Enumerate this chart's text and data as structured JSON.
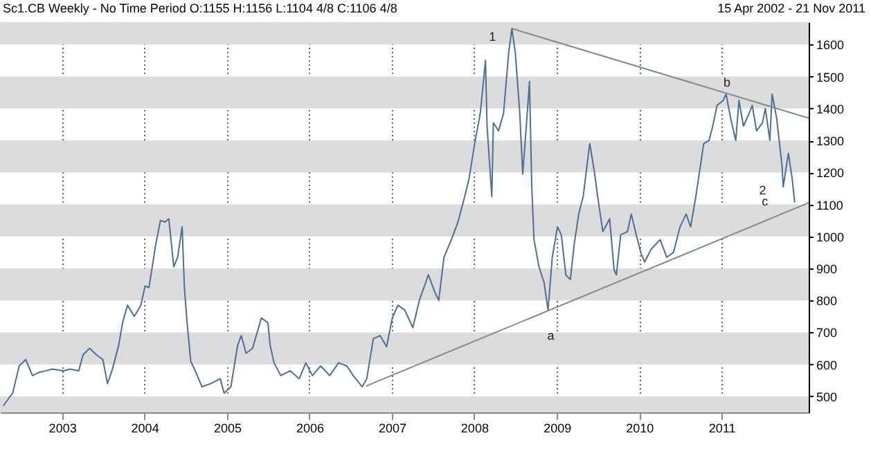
{
  "chart_data": {
    "type": "line",
    "title": "Sc1.CB Weekly -  No Time Period O:1155 H:1156 L:1104 4/8 C:1106 4/8",
    "subtitle": "15 Apr 2002  -  21 Nov 2011",
    "xlim": [
      "2002-04-01",
      "2012-01-22"
    ],
    "ylim": [
      450,
      1670
    ],
    "xticks": [
      "2003",
      "2004",
      "2005",
      "2006",
      "2007",
      "2008",
      "2009",
      "2010",
      "2011"
    ],
    "yticks": [
      500,
      600,
      700,
      800,
      900,
      1000,
      1100,
      1200,
      1300,
      1400,
      1500,
      1600
    ],
    "grid": "x",
    "marker": "none",
    "bands": [
      {
        "axis": "y",
        "from": 450,
        "to": 500,
        "color": "#dcdcdc"
      },
      {
        "axis": "y",
        "from": 600,
        "to": 700,
        "color": "#dcdcdc"
      },
      {
        "axis": "y",
        "from": 800,
        "to": 900,
        "color": "#dcdcdc"
      },
      {
        "axis": "y",
        "from": 1000,
        "to": 1100,
        "color": "#dcdcdc"
      },
      {
        "axis": "y",
        "from": 1200,
        "to": 1300,
        "color": "#dcdcdc"
      },
      {
        "axis": "y",
        "from": 1400,
        "to": 1500,
        "color": "#dcdcdc"
      },
      {
        "axis": "y",
        "from": 1600,
        "to": 1670,
        "color": "#dcdcdc"
      }
    ],
    "annotations": [
      "1",
      {
        "text": "a",
        "x": "2008-12-05",
        "y": 690
      },
      "b",
      "2",
      {
        "text": "c",
        "x": "2011-07-12",
        "y": 1110
      }
    ],
    "series": [
      {
        "type": "line",
        "color": "#4a6f9a",
        "x": [
          "2002-04-15",
          "2002-05-27",
          "2002-06-25",
          "2002-07-24",
          "2002-08-23",
          "2002-09-22",
          "2002-10-21",
          "2002-11-20",
          "2003-01-06",
          "2003-02-07",
          "2003-03-16",
          "2003-04-04",
          "2003-05-03",
          "2003-06-02",
          "2003-07-01",
          "2003-07-21",
          "2003-08-10",
          "2003-09-09",
          "2003-09-26",
          "2003-10-18",
          "2003-11-17",
          "2003-12-16",
          "2004-01-04",
          "2004-01-21",
          "2004-02-20",
          "2004-03-12",
          "2004-04-01",
          "2004-04-18",
          "2004-05-10",
          "2004-05-27",
          "2004-06-16",
          "2004-06-26",
          "2004-07-08",
          "2004-07-24",
          "2004-08-13",
          "2004-09-12",
          "2004-10-21",
          "2004-12-02",
          "2004-12-19",
          "2005-01-18",
          "2005-02-17",
          "2005-03-05",
          "2005-03-26",
          "2005-04-24",
          "2005-06-02",
          "2005-07-01",
          "2005-07-11",
          "2005-07-28",
          "2005-08-27",
          "2005-10-08",
          "2005-11-17",
          "2005-12-16",
          "2006-01-14",
          "2006-02-20",
          "2006-04-01",
          "2006-05-10",
          "2006-06-16",
          "2006-07-14",
          "2006-08-23",
          "2006-09-12",
          "2006-10-11",
          "2006-11-10",
          "2006-12-09",
          "2007-01-03",
          "2007-01-28",
          "2007-02-27",
          "2007-04-04",
          "2007-05-03",
          "2007-06-12",
          "2007-07-11",
          "2007-07-28",
          "2007-08-20",
          "2007-09-22",
          "2007-10-21",
          "2007-11-20",
          "2007-12-09",
          "2008-01-03",
          "2008-01-28",
          "2008-02-20",
          "2008-02-27",
          "2008-03-19",
          "2008-03-26",
          "2008-04-18",
          "2008-05-10",
          "2008-06-02",
          "2008-06-16",
          "2008-07-01",
          "2008-07-21",
          "2008-08-03",
          "2008-08-20",
          "2008-09-02",
          "2008-09-12",
          "2008-09-22",
          "2008-10-14",
          "2008-11-06",
          "2008-11-23",
          "2008-12-12",
          "2009-01-04",
          "2009-01-21",
          "2009-02-10",
          "2009-03-02",
          "2009-03-19",
          "2009-04-08",
          "2009-04-28",
          "2009-05-17",
          "2009-05-27",
          "2009-06-16",
          "2009-07-04",
          "2009-07-24",
          "2009-08-23",
          "2009-09-12",
          "2009-09-22",
          "2009-10-11",
          "2009-11-10",
          "2009-11-27",
          "2009-12-19",
          "2010-01-08",
          "2010-01-25",
          "2010-02-23",
          "2010-04-04",
          "2010-05-03",
          "2010-06-02",
          "2010-07-01",
          "2010-07-28",
          "2010-08-17",
          "2010-09-09",
          "2010-09-26",
          "2010-10-14",
          "2010-11-06",
          "2010-11-23",
          "2010-12-12",
          "2011-01-08",
          "2011-01-21",
          "2011-02-10",
          "2011-03-05",
          "2011-03-19",
          "2011-04-08",
          "2011-05-03",
          "2011-05-17",
          "2011-06-05",
          "2011-07-01",
          "2011-07-14",
          "2011-08-03",
          "2011-08-13",
          "2011-09-02",
          "2011-09-26",
          "2011-10-01",
          "2011-10-24",
          "2011-11-10",
          "2011-11-21"
        ],
        "values": [
          470,
          510,
          595,
          615,
          565,
          575,
          580,
          585,
          580,
          585,
          580,
          630,
          650,
          630,
          615,
          540,
          580,
          660,
          730,
          785,
          750,
          785,
          845,
          840,
          975,
          1050,
          1045,
          1055,
          905,
          935,
          1030,
          840,
          730,
          610,
          580,
          530,
          540,
          555,
          510,
          530,
          660,
          690,
          635,
          650,
          745,
          730,
          660,
          605,
          565,
          580,
          555,
          605,
          565,
          595,
          565,
          605,
          595,
          565,
          530,
          555,
          680,
          690,
          655,
          745,
          785,
          770,
          715,
          800,
          880,
          825,
          800,
          935,
          990,
          1045,
          1125,
          1180,
          1290,
          1385,
          1550,
          1345,
          1125,
          1355,
          1330,
          1385,
          1575,
          1650,
          1575,
          1385,
          1195,
          1355,
          1485,
          1155,
          990,
          905,
          855,
          770,
          935,
          1030,
          1005,
          880,
          865,
          975,
          1070,
          1125,
          1235,
          1290,
          1205,
          1110,
          1015,
          1055,
          895,
          880,
          1005,
          1015,
          1070,
          1005,
          950,
          920,
          960,
          990,
          935,
          950,
          1030,
          1070,
          1030,
          1125,
          1205,
          1290,
          1300,
          1345,
          1410,
          1425,
          1445,
          1370,
          1300,
          1425,
          1345,
          1385,
          1410,
          1330,
          1355,
          1400,
          1300,
          1445,
          1370,
          1220,
          1155,
          1260,
          1180,
          1106
        ]
      },
      {
        "type": "line",
        "color": "#7a9088",
        "x": [
          "2008-06-16",
          "2012-01-22"
        ],
        "values": [
          1650,
          1370
        ]
      },
      {
        "type": "line",
        "color": "#7a9088",
        "x": [
          "2006-09-08",
          "2012-01-22"
        ],
        "values": [
          532,
          1105
        ]
      }
    ]
  }
}
